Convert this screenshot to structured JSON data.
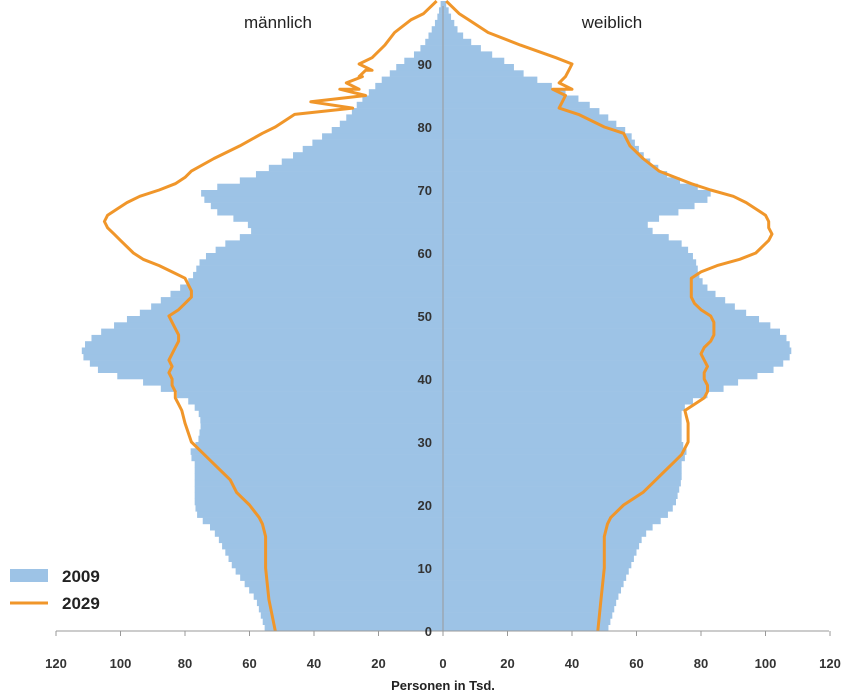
{
  "chart_data": {
    "type": "bar",
    "subtype": "population-pyramid",
    "side_labels": {
      "left": "männlich",
      "right": "weiblich"
    },
    "xlabel": "Personen in Tsd.",
    "x_ticks": [
      120,
      100,
      80,
      60,
      40,
      20,
      0,
      20,
      40,
      60,
      80,
      100,
      120
    ],
    "x_range": [
      0,
      120
    ],
    "y_ticks": [
      0,
      10,
      20,
      30,
      40,
      50,
      60,
      70,
      80,
      90
    ],
    "y_range": [
      0,
      100
    ],
    "legend": {
      "position": "bottom-left",
      "entries": [
        "2009",
        "2029"
      ]
    },
    "colors": {
      "bars_2009": "#9dc3e6",
      "line_2029": "#f0962a",
      "axis": "#999999"
    },
    "age_knots": [
      0,
      5,
      10,
      15,
      17,
      18,
      20,
      22,
      24,
      25,
      27,
      28,
      30,
      33,
      35,
      36,
      37,
      38,
      39,
      40,
      41,
      42,
      43,
      44,
      45,
      46,
      47,
      48,
      49,
      50,
      51,
      52,
      53,
      54,
      55,
      56,
      57,
      58,
      59,
      60,
      62,
      63,
      64,
      65,
      66,
      67,
      68,
      69,
      70,
      71,
      72,
      73,
      75,
      77,
      79,
      80,
      82,
      84,
      86,
      88,
      89,
      90,
      91,
      93,
      95,
      97,
      98,
      99,
      100
    ],
    "male_2009_knots": [
      55,
      58,
      65,
      70,
      73,
      76,
      77,
      77,
      77,
      77,
      77,
      79,
      76,
      75,
      76,
      78,
      80,
      85,
      90,
      96,
      106,
      108,
      111,
      112,
      112,
      110,
      108,
      104,
      100,
      96,
      92,
      89,
      86,
      83,
      80,
      78,
      77,
      76,
      75,
      72,
      66,
      60,
      59,
      62,
      68,
      72,
      72,
      76,
      74,
      66,
      60,
      56,
      48,
      42,
      36,
      33,
      29,
      26,
      22,
      18,
      15,
      14,
      10,
      6,
      4,
      2,
      1.5,
      1,
      0.5
    ],
    "female_2009_knots": [
      51,
      54,
      58,
      62,
      66,
      69,
      72,
      73,
      74,
      74,
      74,
      76,
      74,
      74,
      74,
      76,
      79,
      85,
      89,
      94,
      101,
      104,
      107,
      108,
      108,
      107,
      106,
      103,
      100,
      96,
      92,
      89,
      86,
      83,
      81,
      80,
      79,
      79,
      78,
      77,
      73,
      67,
      63,
      64,
      70,
      76,
      80,
      84,
      82,
      76,
      71,
      68,
      63,
      60,
      58,
      55,
      50,
      44,
      36,
      27,
      23,
      21,
      17,
      10,
      5,
      3,
      2,
      1.5,
      0.5
    ],
    "male_2029_knots": [
      52,
      54,
      55,
      55,
      56,
      57,
      60,
      64,
      66,
      68,
      72,
      74,
      78,
      80,
      81,
      82,
      83,
      83,
      84,
      84,
      85,
      84,
      85,
      84,
      83,
      82,
      82,
      83,
      84,
      85,
      82,
      80,
      78,
      78,
      79,
      80,
      84,
      88,
      93,
      96,
      100,
      102,
      104,
      105,
      104,
      101,
      98,
      94,
      88,
      83,
      80,
      78,
      71,
      63,
      56,
      52,
      46,
      41,
      32,
      25,
      24,
      26,
      22,
      18,
      15,
      10,
      6,
      4,
      2
    ],
    "male_2029_extra": [
      [
        83,
        28
      ],
      [
        85,
        24
      ],
      [
        86,
        26
      ],
      [
        87,
        30
      ],
      [
        88,
        26
      ],
      [
        89,
        22
      ],
      [
        91,
        22
      ]
    ],
    "female_2029_knots": [
      48,
      49,
      50,
      50,
      51,
      52,
      56,
      62,
      66,
      68,
      72,
      74,
      76,
      76,
      75,
      78,
      81,
      82,
      82,
      81,
      81,
      82,
      81,
      80,
      81,
      83,
      84,
      84,
      84,
      83,
      80,
      78,
      77,
      77,
      77,
      77,
      80,
      85,
      92,
      97,
      101,
      102,
      101,
      101,
      100,
      97,
      94,
      90,
      83,
      77,
      72,
      67,
      62,
      58,
      56,
      50,
      42,
      37,
      34,
      38,
      39,
      40,
      35,
      24,
      14,
      8,
      5,
      3,
      1
    ],
    "female_2029_extra": [
      [
        83,
        36
      ],
      [
        85,
        38
      ],
      [
        86,
        40
      ],
      [
        87,
        36
      ],
      [
        88,
        38
      ]
    ]
  }
}
